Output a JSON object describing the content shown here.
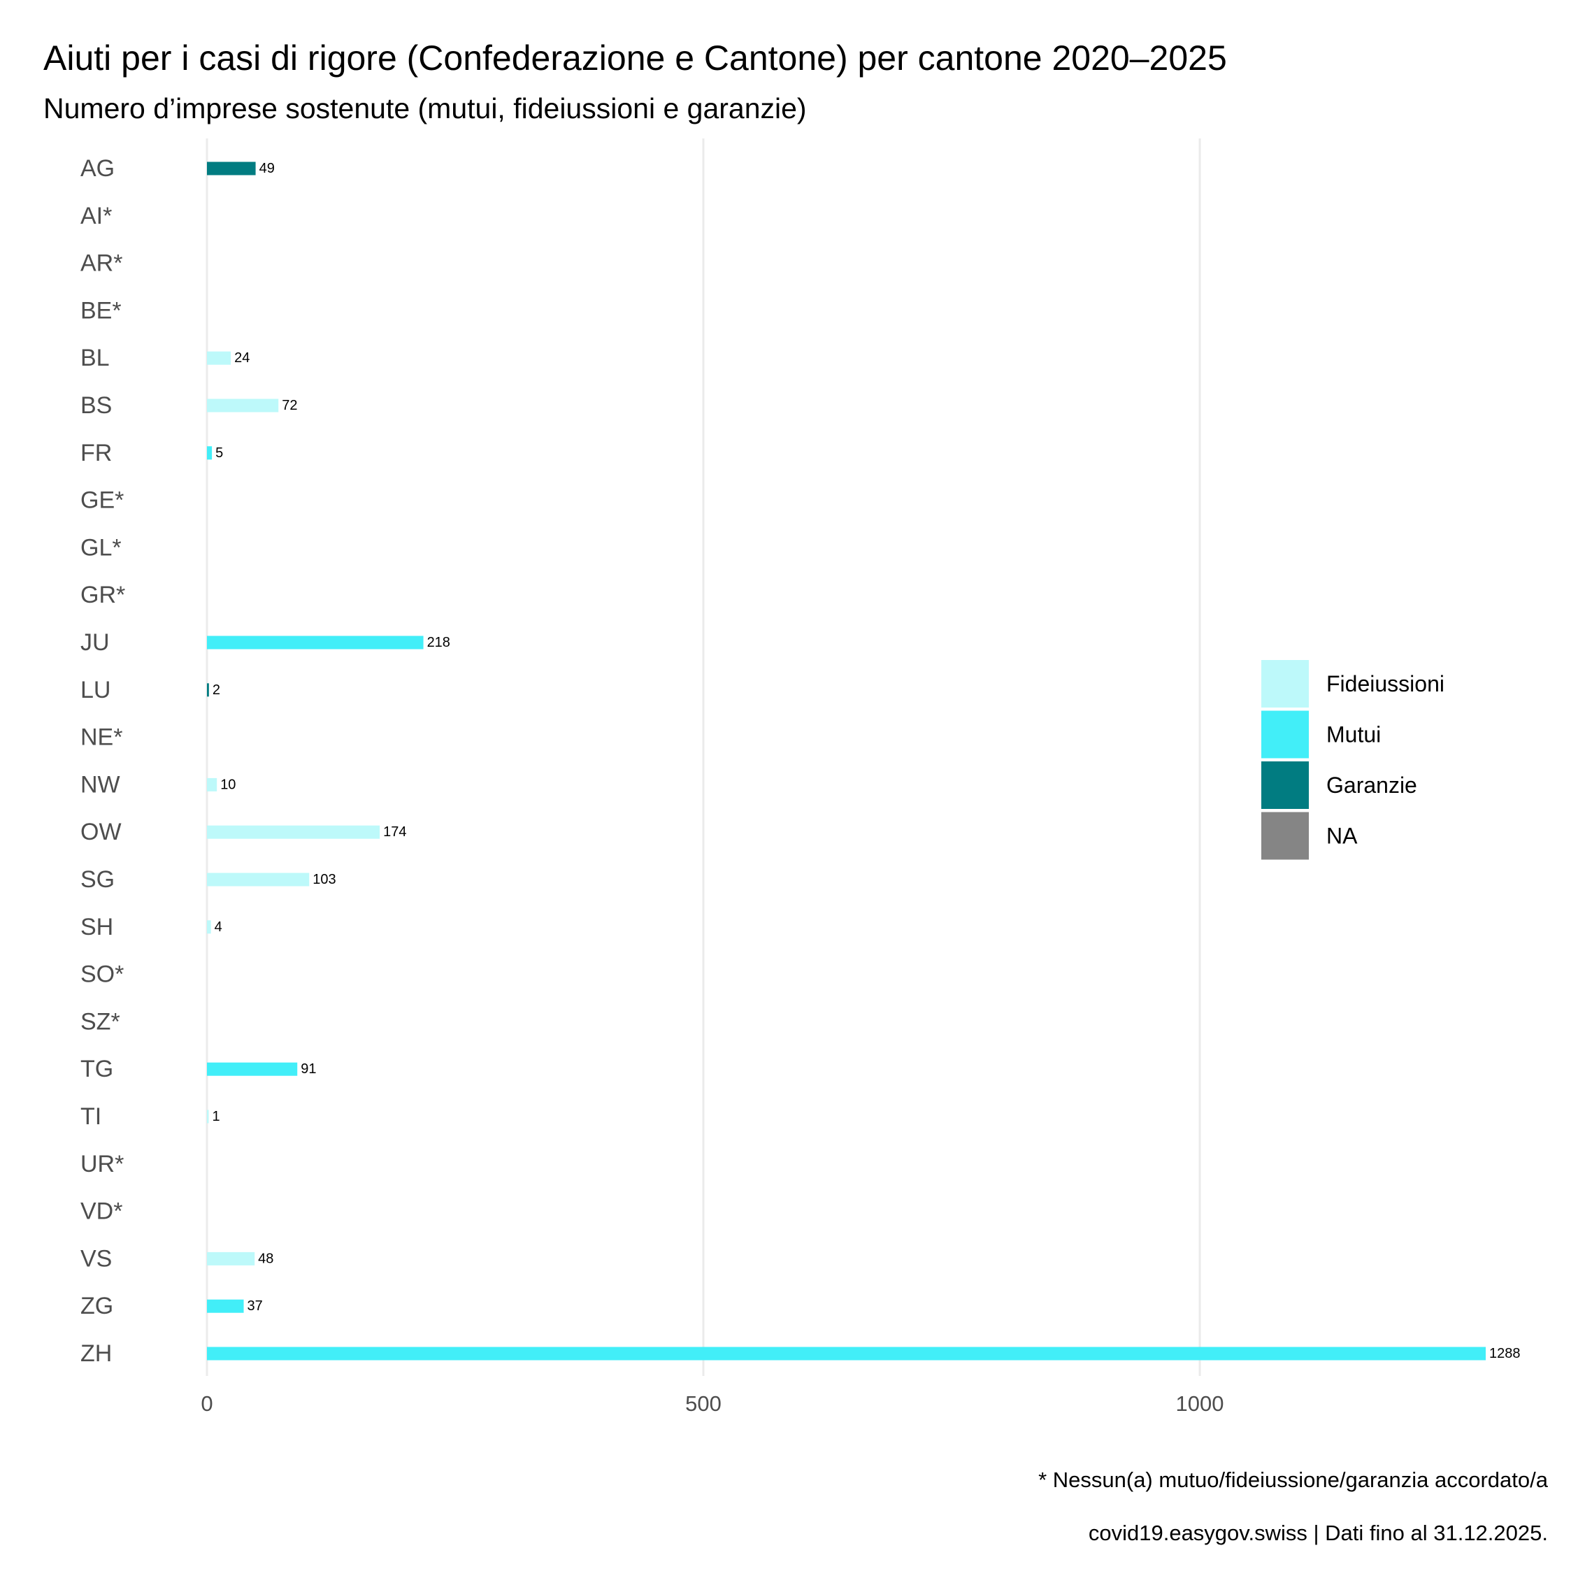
{
  "chart_data": {
    "type": "bar",
    "orientation": "horizontal",
    "title": "Aiuti per i casi di rigore (Confederazione e Cantone) per cantone 2020–2025",
    "subtitle": "Numero d’imprese sostenute (mutui, fideiussioni e garanzie)",
    "xlabel": "",
    "ylabel": "",
    "xlim": [
      0,
      1288
    ],
    "x_ticks": [
      0,
      500,
      1000
    ],
    "x_tick_labels": [
      "0",
      "500",
      "1000"
    ],
    "grid": "vertical major lines",
    "legend_position": "right",
    "categories": [
      "AG",
      "AI*",
      "AR*",
      "BE*",
      "BL",
      "BS",
      "FR",
      "GE*",
      "GL*",
      "GR*",
      "JU",
      "LU",
      "NE*",
      "NW",
      "OW",
      "SG",
      "SH",
      "SO*",
      "SZ*",
      "TG",
      "TI",
      "UR*",
      "VD*",
      "VS",
      "ZG",
      "ZH"
    ],
    "bars": [
      {
        "category": "AG",
        "type": "Garanzie",
        "value": 49
      },
      {
        "category": "AI*",
        "type": null,
        "value": null
      },
      {
        "category": "AR*",
        "type": null,
        "value": null
      },
      {
        "category": "BE*",
        "type": null,
        "value": null
      },
      {
        "category": "BL",
        "type": "Fideiussioni",
        "value": 24
      },
      {
        "category": "BS",
        "type": "Fideiussioni",
        "value": 72
      },
      {
        "category": "FR",
        "type": "Mutui",
        "value": 5
      },
      {
        "category": "GE*",
        "type": null,
        "value": null
      },
      {
        "category": "GL*",
        "type": null,
        "value": null
      },
      {
        "category": "GR*",
        "type": null,
        "value": null
      },
      {
        "category": "JU",
        "type": "Mutui",
        "value": 218
      },
      {
        "category": "LU",
        "type": "Garanzie",
        "value": 2
      },
      {
        "category": "NE*",
        "type": null,
        "value": null
      },
      {
        "category": "NW",
        "type": "Fideiussioni",
        "value": 10
      },
      {
        "category": "OW",
        "type": "Fideiussioni",
        "value": 174
      },
      {
        "category": "SG",
        "type": "Fideiussioni",
        "value": 103
      },
      {
        "category": "SH",
        "type": "Fideiussioni",
        "value": 4
      },
      {
        "category": "SO*",
        "type": null,
        "value": null
      },
      {
        "category": "SZ*",
        "type": null,
        "value": null
      },
      {
        "category": "TG",
        "type": "Mutui",
        "value": 91
      },
      {
        "category": "TI",
        "type": "Fideiussioni",
        "value": 1
      },
      {
        "category": "UR*",
        "type": null,
        "value": null
      },
      {
        "category": "VD*",
        "type": null,
        "value": null
      },
      {
        "category": "VS",
        "type": "Fideiussioni",
        "value": 48
      },
      {
        "category": "ZG",
        "type": "Mutui",
        "value": 37
      },
      {
        "category": "ZH",
        "type": "Mutui",
        "value": 1288
      }
    ],
    "legend": [
      {
        "label": "Fideiussioni",
        "color": "#bdf9fa"
      },
      {
        "label": "Mutui",
        "color": "#42eef8"
      },
      {
        "label": "Garanzie",
        "color": "#017c81"
      },
      {
        "label": "NA",
        "color": "#858585"
      }
    ],
    "caption": [
      "* Nessun(a) mutuo/fideiussione/garanzia accordato/a",
      "covid19.easygov.swiss | Dati fino al 31.12.2025."
    ]
  }
}
